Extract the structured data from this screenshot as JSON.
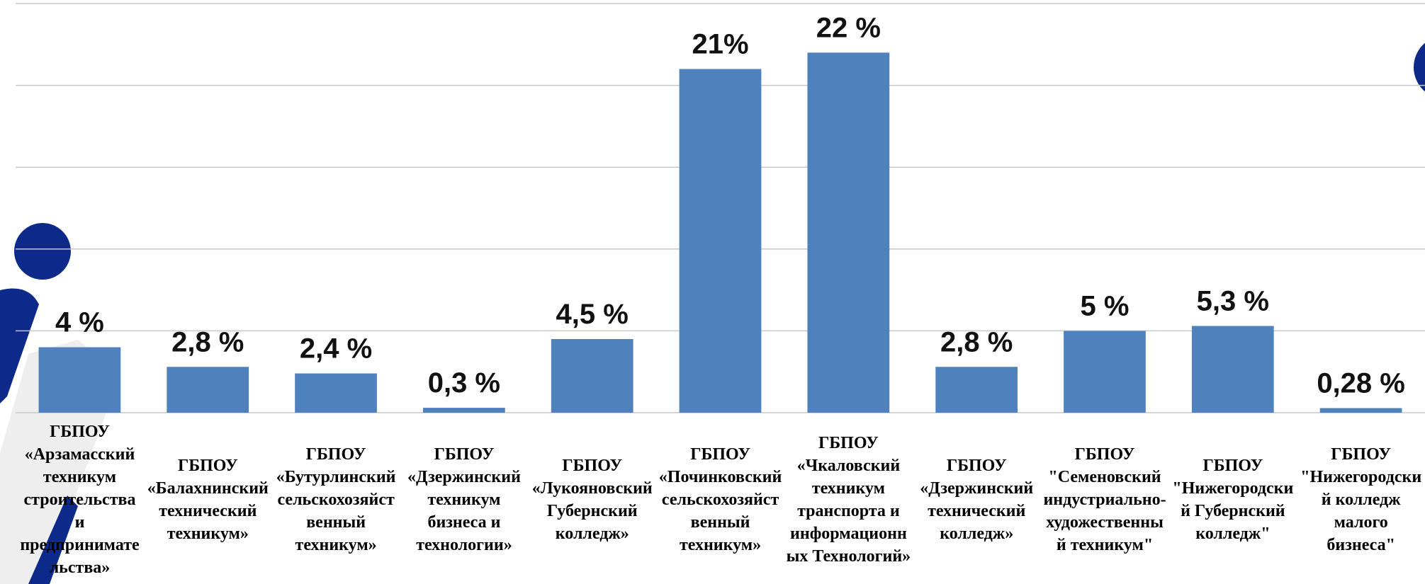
{
  "chart_data": {
    "type": "bar",
    "categories": [
      "ГБПОУ «Арзамасский техникум строительства и предпринимательства»",
      "ГБПОУ «Балахнинский технический техникум»",
      "ГБПОУ «Бутурлинский сельскохозяйственный техникум»",
      "ГБПОУ «Дзержинский техникум бизнеса и технологии»",
      "ГБПОУ «Лукояновский Губернский колледж»",
      "ГБПОУ «Починковский сельскохозяйственный техникум»",
      "ГБПОУ «Чкаловский техникум транспорта и информационных Технологий»",
      "ГБПОУ «Дзержинский технический колледж»",
      "ГБПОУ \"Семеновский индустриально-художественный техникум\"",
      "ГБПОУ \"Нижегородский Губернский колледж\"",
      "ГБПОУ \"Нижегородский колледж малого бизнеса\""
    ],
    "values": [
      4,
      2.8,
      2.4,
      0.3,
      4.5,
      21,
      22,
      2.8,
      5,
      5.3,
      0.28
    ],
    "value_labels": [
      "4 %",
      "2,8 %",
      "2,4 %",
      "0,3 %",
      "4,5 %",
      "21%",
      "22 %",
      "2,8 %",
      "5 %",
      "5,3 %",
      "0,28 %"
    ],
    "color": "#4f81bd",
    "ylim": [
      0,
      25
    ],
    "yticks": [
      0,
      5,
      10,
      15,
      20,
      25
    ],
    "grid": true
  }
}
